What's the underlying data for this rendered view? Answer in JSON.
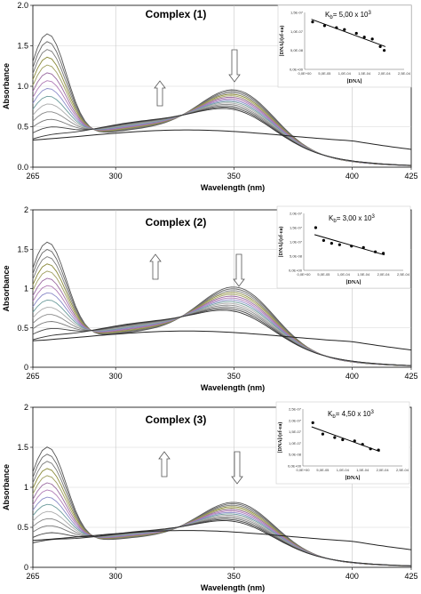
{
  "figure": {
    "panels": [
      {
        "title": "Complex (1)",
        "kb_label": "K",
        "kb_sub": "b",
        "kb_value": "= 5,00 x 10",
        "kb_exp": "3",
        "y_ticks": [
          "0.0",
          "0.5",
          "1.0",
          "1.5",
          "2.0"
        ],
        "y_decimal": true,
        "inset_y_ticks": [
          "0,0E+00",
          "5,0E-08",
          "1,0E-07",
          "1,5E-07"
        ],
        "inset_x_ticks": [
          "0,0E+00",
          "5,0E-05",
          "1,0E-04",
          "1,5E-04",
          "2,0E-04",
          "2,5E-04"
        ]
      },
      {
        "title": "Complex (2)",
        "kb_label": "K",
        "kb_sub": "b",
        "kb_value": "= 3,00 x 10",
        "kb_exp": "3",
        "y_ticks": [
          "0",
          "0.5",
          "1",
          "1.5",
          "2"
        ],
        "y_decimal": false,
        "inset_y_ticks": [
          "0,0E+00",
          "5,0E-08",
          "1,0E-07",
          "1,5E-07",
          "2,0E-07"
        ],
        "inset_x_ticks": [
          "0,0E+00",
          "5,0E-05",
          "1,0E-04",
          "1,5E-04",
          "2,0E-04",
          "2,5E-04"
        ]
      },
      {
        "title": "Complex (3)",
        "kb_label": "K",
        "kb_sub": "b",
        "kb_value": "= 4,50 x 10",
        "kb_exp": "3",
        "y_ticks": [
          "0",
          "0.5",
          "1",
          "1.5",
          "2"
        ],
        "y_decimal": false,
        "inset_y_ticks": [
          "0,0E+00",
          "5,0E-08",
          "1,0E-07",
          "1,5E-07",
          "2,0E-07",
          "2,5E-07"
        ],
        "inset_x_ticks": [
          "0,0E+00",
          "5,0E-05",
          "1,0E-04",
          "1,5E-04",
          "2,0E-04",
          "2,5E-04"
        ]
      }
    ],
    "x_ticks": [
      "265",
      "300",
      "350",
      "400",
      "425"
    ],
    "x_label": "Wavelength  (nm)",
    "y_label": "Absorbance",
    "inset_x_label": "[DNA]",
    "inset_y_label": "[DNA]/(εf-εa)"
  },
  "chart_data": [
    {
      "type": "line",
      "title": "Complex (1)",
      "xlabel": "Wavelength  (nm)",
      "ylabel": "Absorbance",
      "xlim": [
        265,
        425
      ],
      "ylim": [
        0,
        2.0
      ],
      "x_ticks": [
        265,
        300,
        350,
        400,
        425
      ],
      "annotation": "Kb = 5,00 x 10^3",
      "series": [
        {
          "values_x": [
            265,
            270,
            278,
            290,
            305,
            320,
            335,
            345,
            352,
            360,
            375,
            395,
            410,
            425
          ],
          "values_y": [
            1.62,
            1.82,
            1.62,
            1.1,
            0.76,
            0.74,
            0.86,
            0.98,
            1.02,
            0.98,
            0.75,
            0.45,
            0.3,
            0.2
          ]
        },
        {
          "values_x": [
            265,
            270,
            278,
            290,
            305,
            320,
            335,
            345,
            352,
            360,
            375,
            395,
            410,
            425
          ],
          "values_y": [
            0.4,
            0.45,
            0.44,
            0.43,
            0.52,
            0.66,
            0.76,
            0.78,
            0.78,
            0.74,
            0.6,
            0.42,
            0.32,
            0.26
          ]
        }
      ],
      "inset": {
        "type": "scatter",
        "xlabel": "[DNA]",
        "ylabel": "[DNA]/(εf-εa)",
        "x": [
          2e-05,
          5e-05,
          8e-05,
          0.0001,
          0.00013,
          0.00015,
          0.00017,
          0.00019,
          0.0002
        ],
        "y": [
          1.25e-07,
          1.15e-07,
          1.1e-07,
          1.05e-07,
          9.5e-08,
          8.5e-08,
          8e-08,
          6e-08,
          5e-08
        ]
      }
    },
    {
      "type": "line",
      "title": "Complex (2)",
      "xlabel": "Wavelength  (nm)",
      "ylabel": "Absorbance",
      "xlim": [
        265,
        425
      ],
      "ylim": [
        0,
        2
      ],
      "x_ticks": [
        265,
        300,
        350,
        400,
        425
      ],
      "annotation": "Kb = 3,00 x 10^3",
      "series": [
        {
          "values_x": [
            265,
            270,
            278,
            290,
            305,
            320,
            335,
            345,
            352,
            360,
            375,
            395,
            410,
            425
          ],
          "values_y": [
            1.52,
            1.76,
            1.55,
            1.05,
            0.66,
            0.68,
            0.8,
            0.98,
            1.08,
            1.02,
            0.72,
            0.42,
            0.27,
            0.2
          ]
        },
        {
          "values_x": [
            265,
            270,
            278,
            290,
            305,
            320,
            335,
            345,
            352,
            360,
            375,
            395,
            410,
            425
          ],
          "values_y": [
            0.4,
            0.44,
            0.43,
            0.44,
            0.5,
            0.62,
            0.76,
            0.8,
            0.8,
            0.78,
            0.62,
            0.42,
            0.3,
            0.24
          ]
        }
      ],
      "inset": {
        "type": "scatter",
        "xlabel": "[DNA]",
        "ylabel": "[DNA]/(εf-εa)",
        "x": [
          3e-05,
          5e-05,
          7e-05,
          9e-05,
          0.00012,
          0.00015,
          0.00018,
          0.0002
        ],
        "y": [
          1.5e-07,
          1.05e-07,
          9.5e-08,
          9e-08,
          8.5e-08,
          8e-08,
          6.5e-08,
          6e-08
        ]
      }
    },
    {
      "type": "line",
      "title": "Complex (3)",
      "xlabel": "Wavelength  (nm)",
      "ylabel": "Absorbance",
      "xlim": [
        265,
        425
      ],
      "ylim": [
        0,
        2
      ],
      "x_ticks": [
        265,
        300,
        350,
        400,
        425
      ],
      "annotation": "Kb = 4,50 x 10^3",
      "series": [
        {
          "values_x": [
            265,
            270,
            278,
            290,
            305,
            320,
            335,
            345,
            352,
            360,
            375,
            395,
            410,
            425
          ],
          "values_y": [
            1.45,
            1.68,
            1.5,
            1.02,
            0.62,
            0.55,
            0.62,
            0.78,
            0.85,
            0.8,
            0.58,
            0.36,
            0.23,
            0.16
          ]
        },
        {
          "values_x": [
            265,
            270,
            278,
            290,
            305,
            320,
            335,
            345,
            352,
            360,
            375,
            395,
            410,
            425
          ],
          "values_y": [
            0.38,
            0.42,
            0.4,
            0.4,
            0.44,
            0.52,
            0.6,
            0.62,
            0.62,
            0.6,
            0.5,
            0.35,
            0.25,
            0.2
          ]
        }
      ],
      "inset": {
        "type": "scatter",
        "xlabel": "[DNA]",
        "ylabel": "[DNA]/(εf-εa)",
        "x": [
          2.5e-05,
          5e-05,
          8e-05,
          0.0001,
          0.00013,
          0.00015,
          0.00017,
          0.00019
        ],
        "y": [
          1.9e-07,
          1.4e-07,
          1.25e-07,
          1.15e-07,
          1.1e-07,
          9.5e-08,
          7.5e-08,
          7e-08
        ]
      }
    }
  ]
}
